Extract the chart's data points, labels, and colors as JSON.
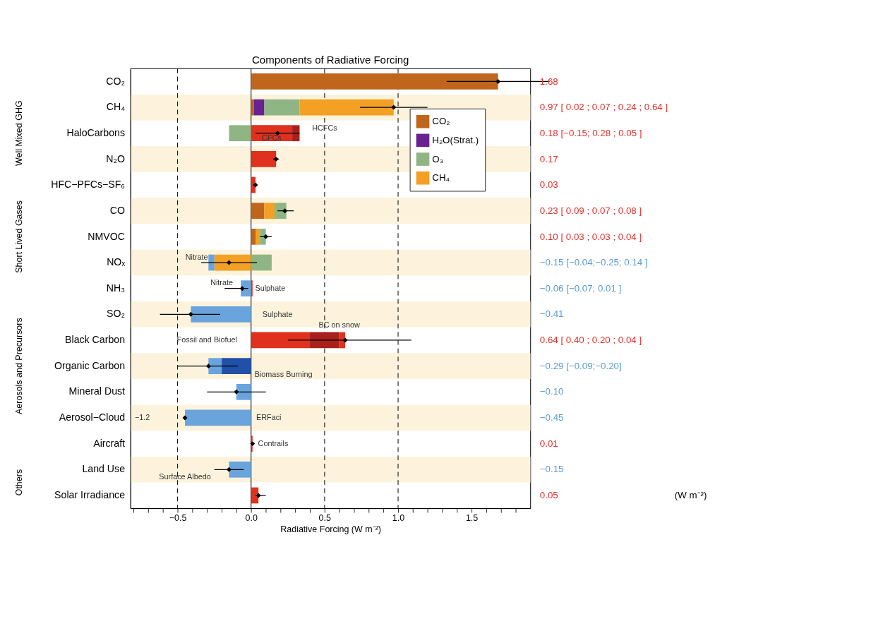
{
  "chart_data": {
    "type": "bar",
    "orientation": "horizontal",
    "stacked": true,
    "title": "Components of Radiative Forcing",
    "xlabel": "Radiative Forcing (W m⁻²)",
    "categories": [
      "CO₂",
      "CH₄",
      "HaloCarbons",
      "N₂O",
      "HFC−PFCs−SF₆",
      "CO",
      "NMVOC",
      "NOₓ",
      "NH₃",
      "SO₂",
      "Black Carbon",
      "Organic Carbon",
      "Mineral Dust",
      "Aerosol−Cloud",
      "Aircraft",
      "Land Use",
      "Solar Irradiance"
    ],
    "series": [
      {
        "name": "CO₂",
        "color": "#c0651c",
        "values": [
          1.68,
          0.02,
          null,
          null,
          null,
          0.09,
          0.03,
          null,
          null,
          null,
          null,
          null,
          null,
          null,
          null,
          null,
          null
        ]
      },
      {
        "name": "H₂O(Strat.)",
        "color": "#6a2290",
        "values": [
          null,
          0.07,
          null,
          null,
          null,
          null,
          null,
          null,
          null,
          null,
          null,
          null,
          null,
          null,
          null,
          null,
          null
        ]
      },
      {
        "color": "#f4a024",
        "values": [
          null,
          null,
          null,
          null,
          null,
          0.07,
          0.03,
          -0.25,
          null,
          null,
          null,
          null,
          null,
          null,
          null,
          null,
          null
        ]
      },
      {
        "name": "O₃",
        "color": "#8fb585",
        "values": [
          null,
          0.24,
          -0.15,
          null,
          null,
          0.08,
          0.04,
          0.14,
          null,
          null,
          null,
          null,
          null,
          null,
          null,
          null,
          null
        ]
      },
      {
        "name": "CH₄",
        "color": "#f4a024",
        "values": [
          null,
          0.64,
          null,
          null,
          null,
          null,
          null,
          null,
          null,
          null,
          null,
          null,
          null,
          null,
          null,
          null,
          null
        ]
      },
      {
        "color": "#e0301e",
        "values": [
          null,
          null,
          0.28,
          0.17,
          0.03,
          null,
          null,
          null,
          0.01,
          null,
          0.4,
          null,
          null,
          null,
          0.01,
          null,
          0.05
        ]
      },
      {
        "color": "#a8201c",
        "values": [
          null,
          null,
          0.05,
          null,
          null,
          null,
          null,
          null,
          null,
          null,
          0.2,
          null,
          null,
          null,
          null,
          null,
          null
        ]
      },
      {
        "color": "#e0301e",
        "values": [
          null,
          null,
          null,
          null,
          null,
          null,
          null,
          null,
          null,
          null,
          0.04,
          null,
          null,
          null,
          null,
          null,
          null
        ]
      },
      {
        "color": "#2050a8",
        "values": [
          null,
          null,
          null,
          null,
          null,
          null,
          null,
          null,
          null,
          null,
          null,
          -0.2,
          null,
          null,
          null,
          null,
          null
        ]
      },
      {
        "color": "#6aa4dc",
        "values": [
          null,
          null,
          null,
          null,
          null,
          null,
          null,
          -0.04,
          -0.07,
          -0.41,
          null,
          -0.09,
          -0.1,
          -0.45,
          null,
          -0.15,
          null
        ]
      },
      {
        "type": "scatter",
        "marker": "diamond",
        "color": "#000000",
        "values": [
          1.68,
          0.97,
          0.18,
          0.17,
          0.03,
          0.23,
          0.1,
          -0.15,
          -0.06,
          -0.41,
          0.64,
          -0.29,
          -0.1,
          -0.45,
          0.01,
          -0.15,
          0.05
        ],
        "errors": [
          [
            1.33,
            2.03
          ],
          [
            0.74,
            1.2
          ],
          [
            0.03,
            0.33
          ],
          [
            0.15,
            0.19
          ],
          [
            0.02,
            0.04
          ],
          [
            0.18,
            0.29
          ],
          [
            0.06,
            0.14
          ],
          [
            -0.34,
            0.04
          ],
          [
            -0.18,
            -0.02
          ],
          [
            -0.62,
            -0.21
          ],
          [
            0.25,
            1.09
          ],
          [
            -0.5,
            -0.09
          ],
          [
            -0.3,
            0.1
          ],
          null,
          [
            0.0,
            0.02
          ],
          [
            -0.25,
            -0.05
          ],
          [
            0.03,
            0.1
          ]
        ]
      }
    ],
    "xlim": [
      -0.82,
      1.9
    ],
    "xticks": [
      {
        "value": -0.8,
        "label": null
      },
      {
        "value": -0.7,
        "label": null
      },
      {
        "value": -0.6,
        "label": null
      },
      {
        "value": -0.5,
        "label": "−0.5"
      },
      {
        "value": -0.4,
        "label": null
      },
      {
        "value": -0.3,
        "label": null
      },
      {
        "value": -0.2,
        "label": null
      },
      {
        "value": -0.1,
        "label": null
      },
      {
        "value": 0,
        "label": "0.0"
      },
      {
        "value": 0.1,
        "label": null
      },
      {
        "value": 0.2,
        "label": null
      },
      {
        "value": 0.3,
        "label": null
      },
      {
        "value": 0.4,
        "label": null
      },
      {
        "value": 0.5,
        "label": "0.5"
      },
      {
        "value": 0.6,
        "label": null
      },
      {
        "value": 0.7,
        "label": null
      },
      {
        "value": 0.8,
        "label": null
      },
      {
        "value": 0.9,
        "label": null
      },
      {
        "value": 1.0,
        "label": "1.0"
      },
      {
        "value": 1.1,
        "label": null
      },
      {
        "value": 1.2,
        "label": null
      },
      {
        "value": 1.3,
        "label": null
      },
      {
        "value": 1.4,
        "label": null
      },
      {
        "value": 1.5,
        "label": "1.5"
      },
      {
        "value": 1.6,
        "label": null
      },
      {
        "value": 1.7,
        "label": null
      },
      {
        "value": 1.8,
        "label": null
      }
    ],
    "legend": "top right",
    "ref_lines": [
      {
        "axis": "x",
        "value": -0.5,
        "line_style": "dashed"
      },
      {
        "axis": "x",
        "value": 0.5,
        "line_style": "dashed"
      },
      {
        "axis": "x",
        "value": 1.0,
        "line_style": "dashed"
      },
      {
        "axis": "x",
        "value": 0,
        "line_style": "solid"
      }
    ],
    "bands": [
      {
        "axis": "y",
        "from": "CH₄",
        "to": "CH₄",
        "color": "#fdf3dc"
      },
      {
        "axis": "y",
        "from": "N₂O",
        "to": "N₂O",
        "color": "#fdf3dc"
      },
      {
        "axis": "y",
        "from": "CO",
        "to": "CO",
        "color": "#fdf3dc"
      },
      {
        "axis": "y",
        "from": "NOₓ",
        "to": "NOₓ",
        "color": "#fdf3dc"
      },
      {
        "axis": "y",
        "from": "SO₂",
        "to": "SO₂",
        "color": "#fdf3dc"
      },
      {
        "axis": "y",
        "from": "Organic Carbon",
        "to": "Organic Carbon",
        "color": "#fdf3dc"
      },
      {
        "axis": "y",
        "from": "Aerosol−Cloud",
        "to": "Aerosol−Cloud",
        "color": "#fdf3dc"
      },
      {
        "axis": "y",
        "from": "Land Use",
        "to": "Land Use",
        "color": "#fdf3dc"
      }
    ],
    "annotations": [
      "HCFCs",
      "CFCs",
      "Nitrate",
      "Nitrate",
      "Sulphate",
      "Sulphate",
      "BC on snow",
      "Fossil and Biofuel",
      "Biomass Burning",
      "ERFaci",
      "Contrails",
      "Surface Albedo",
      "−1.2",
      "Well Mixed GHG",
      "Short Lived Gases",
      "Aerosols and Precursors",
      "Others",
      "(W m⁻²)",
      "1.68",
      "0.97 [ 0.02 ; 0.07 ; 0.24 ; 0.64 ]",
      "0.18 [−0.15; 0.28 ; 0.05 ]",
      "0.17",
      "0.03",
      "0.23 [ 0.09 ; 0.07 ; 0.08 ]",
      "0.10 [ 0.03 ; 0.03 ; 0.04 ]",
      "−0.15 [−0.04;−0.25; 0.14 ]",
      "−0.06 [−0.07; 0.01 ]",
      "−0.41",
      "0.64 [ 0.40 ; 0.20 ; 0.04 ]",
      "−0.29 [−0.09;−0.20]",
      "−0.10",
      "−0.45",
      "0.01",
      "−0.15",
      "0.05"
    ]
  }
}
